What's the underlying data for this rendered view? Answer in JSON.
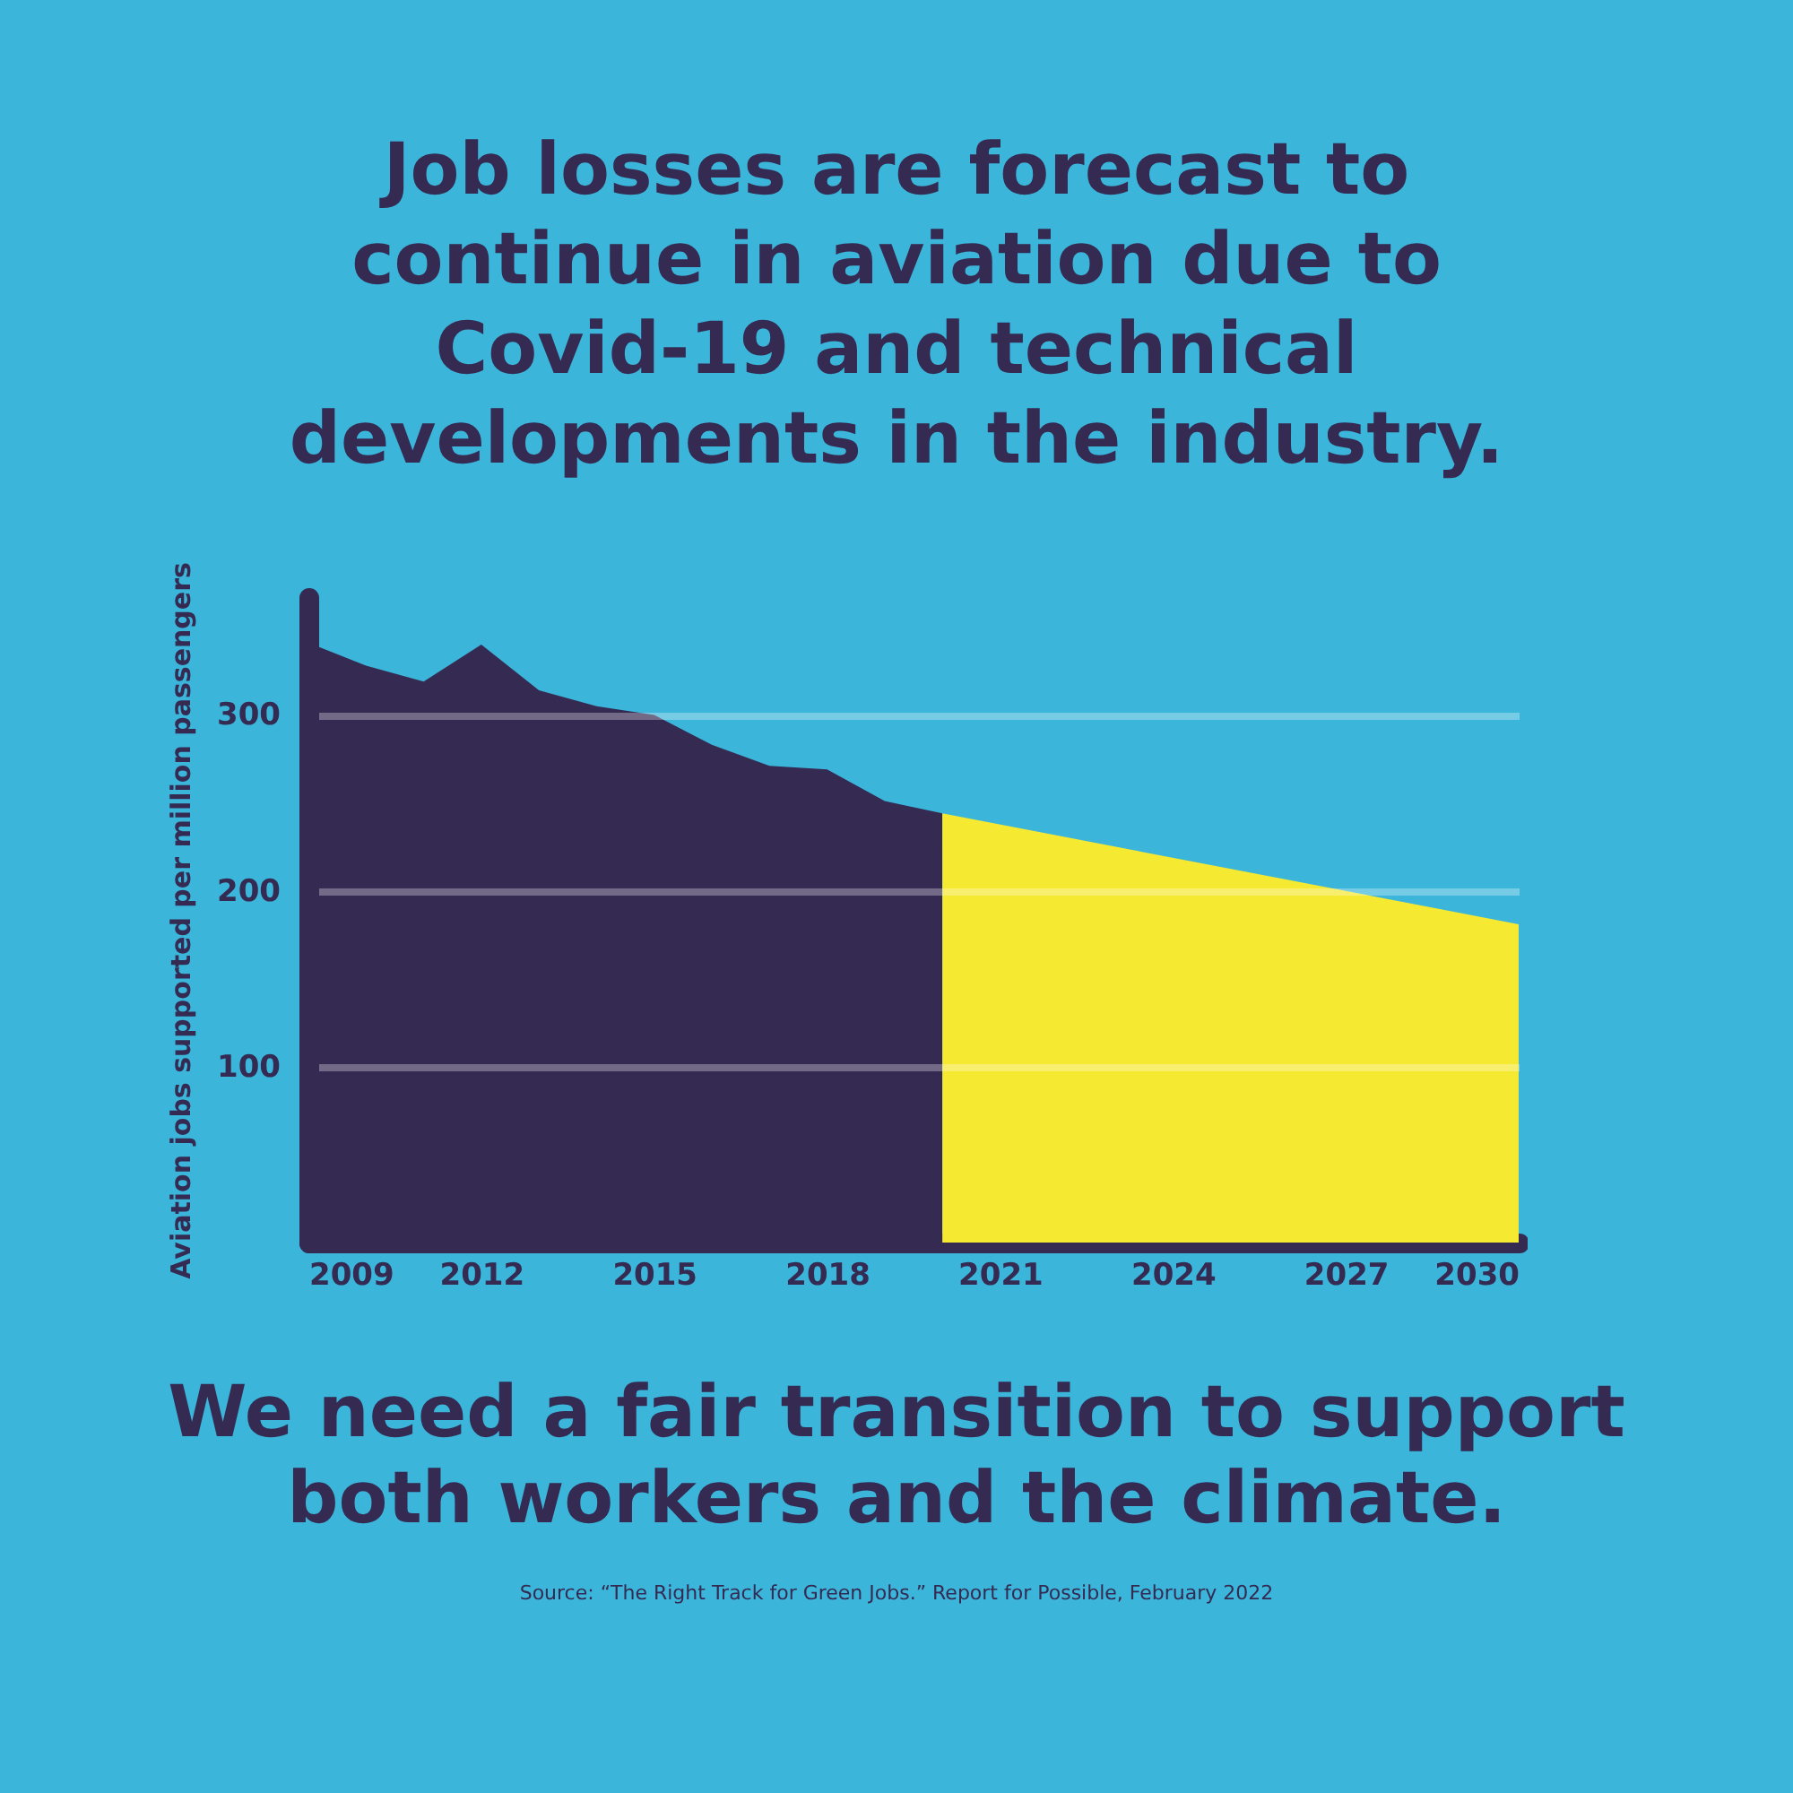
{
  "chart_data": {
    "type": "area",
    "title": "Job losses are forecast to continue in aviation due to Covid-19 and technical developments in the industry.",
    "ylabel": "Aviation jobs supported per million passengers",
    "series": [
      {
        "color": "#352a52",
        "x": [
          2009,
          2010,
          2011,
          2012,
          2013,
          2014,
          2015,
          2016,
          2017,
          2018,
          2019,
          2020
        ],
        "values": [
          341,
          328,
          319,
          340,
          314,
          305,
          300,
          283,
          271,
          269,
          251,
          244
        ]
      },
      {
        "color": "#f5e932",
        "x": [
          2020,
          2030
        ],
        "values": [
          244,
          181
        ]
      }
    ],
    "xlim": [
      2009,
      2030
    ],
    "xticks": [
      2009,
      2012,
      2015,
      2018,
      2021,
      2024,
      2027,
      2030
    ],
    "ylim": [
      0,
      367
    ],
    "yticks": [
      100,
      200,
      300
    ],
    "grid": "y",
    "annotations": [
      "We need a fair transition to support both workers and the climate.",
      "Source: “The Right Track for Green Jobs.” Report for Possible, February 2022"
    ]
  }
}
